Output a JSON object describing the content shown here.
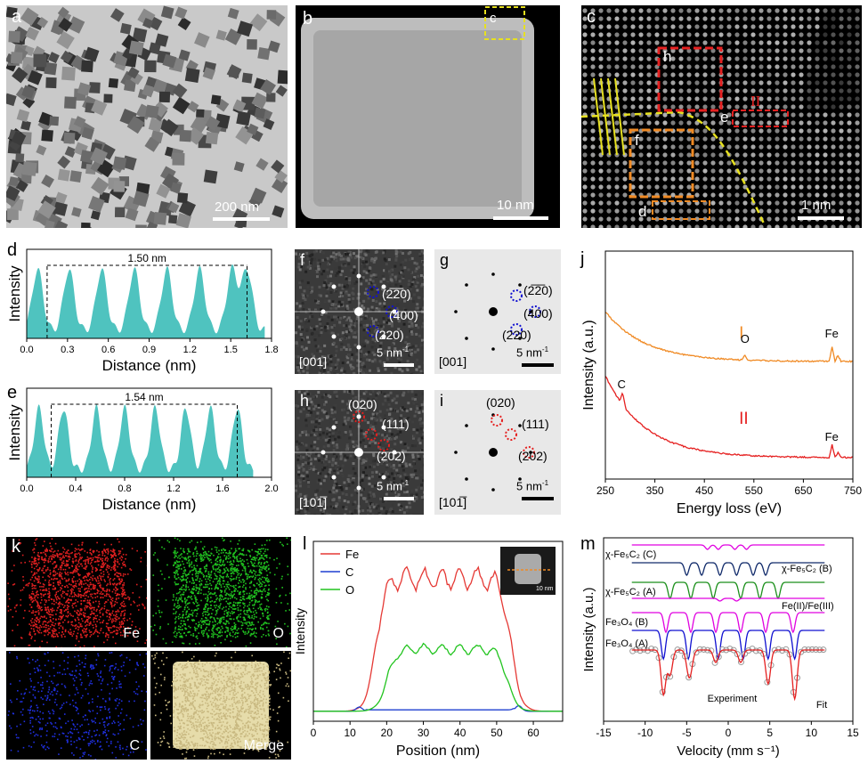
{
  "panels": {
    "a": {
      "label": "a",
      "scale": "200 nm"
    },
    "b": {
      "label": "b",
      "scale": "10 nm",
      "inset": "c"
    },
    "c": {
      "label": "c",
      "scale": "1 nm",
      "box_h": "h",
      "box_e": "e",
      "box_f": "f",
      "box_d": "d",
      "roman": "II"
    },
    "f": {
      "label": "f",
      "zone": "[001]",
      "scale": "5 nm",
      "sup": "-1",
      "spots": [
        "(2̅2̅0)",
        "(400)",
        "(220)"
      ]
    },
    "g": {
      "label": "g",
      "zone": "[001]",
      "scale": "5 nm",
      "sup": "-1",
      "spots": [
        "(2̅2̅0)",
        "(400)",
        "(220)"
      ]
    },
    "h": {
      "label": "h",
      "zone": "[101̅]",
      "scale": "5 nm",
      "sup": "-1",
      "spots": [
        "(020)",
        "(111)",
        "(202)"
      ]
    },
    "i": {
      "label": "i",
      "zone": "[101̅]",
      "scale": "5 nm",
      "sup": "-1",
      "spots": [
        "(020)",
        "(111)",
        "(202)"
      ]
    },
    "k": {
      "label": "k",
      "tiles": [
        "Fe",
        "O",
        "C",
        "Merge"
      ]
    }
  },
  "colors": {
    "teal": "#4fc3bf",
    "fe": "#e53935",
    "c": "#1e3fd0",
    "o": "#22c41f",
    "orange": "#f08a24",
    "ii_red": "#e52020",
    "yellow": "#e6e020",
    "magenta": "#e000e0",
    "blue": "#1010d0",
    "green": "#1a8f1a",
    "navy": "#102a6a"
  },
  "chart_data": [
    {
      "id": "d",
      "type": "area",
      "title": "",
      "xlabel": "Distance (nm)",
      "ylabel": "Intensity",
      "xlim": [
        0,
        1.8
      ],
      "xticks": [
        "0.0",
        "0.3",
        "0.6",
        "0.9",
        "1.2",
        "1.5",
        "1.8"
      ],
      "annotation": "1.50 nm",
      "marker_x": [
        0.15,
        1.62
      ],
      "peaks": [
        0.08,
        0.31,
        0.55,
        0.79,
        1.03,
        1.27,
        1.51,
        1.62
      ]
    },
    {
      "id": "e",
      "type": "area",
      "title": "",
      "xlabel": "Distance (nm)",
      "ylabel": "Intensity",
      "xlim": [
        0,
        2.0
      ],
      "xticks": [
        "0.0",
        "0.4",
        "0.8",
        "1.2",
        "1.6",
        "2.0"
      ],
      "annotation": "1.54 nm",
      "marker_x": [
        0.2,
        1.72
      ],
      "peaks": [
        0.1,
        0.3,
        0.57,
        0.8,
        1.05,
        1.3,
        1.5,
        1.72
      ]
    },
    {
      "id": "j",
      "type": "line",
      "xlabel": "Energy loss (eV)",
      "ylabel": "Intensity (a.u.)",
      "xlim": [
        250,
        750
      ],
      "xticks": [
        "250",
        "350",
        "450",
        "550",
        "650",
        "750"
      ],
      "series": [
        {
          "name": "I",
          "labels": [
            "O",
            "Fe"
          ],
          "edges": [
            532,
            708
          ]
        },
        {
          "name": "II",
          "labels": [
            "C",
            "Fe"
          ],
          "edges": [
            285,
            708
          ]
        }
      ]
    },
    {
      "id": "l",
      "type": "line",
      "xlabel": "Position (nm)",
      "ylabel": "Intensity",
      "xlim": [
        0,
        68
      ],
      "xticks": [
        "0",
        "10",
        "20",
        "30",
        "40",
        "50",
        "60"
      ],
      "inset_scale": "10 nm",
      "series": [
        {
          "name": "Fe",
          "plateau": 1.0,
          "start": 14,
          "end": 54
        },
        {
          "name": "C",
          "plateau": 0.05,
          "start": 12,
          "end": 57
        },
        {
          "name": "O",
          "plateau": 0.47,
          "start": 17,
          "end": 53
        }
      ]
    },
    {
      "id": "m",
      "type": "line",
      "xlabel": "Velocity (mm s⁻¹)",
      "ylabel": "Intensity (a.u.)",
      "xlim": [
        -15,
        15
      ],
      "xticks": [
        "-15",
        "-10",
        "-5",
        "0",
        "5",
        "10",
        "15"
      ],
      "series": [
        {
          "name": "χ-Fe₅C₂ (C)"
        },
        {
          "name": "χ-Fe₅C₂ (B)"
        },
        {
          "name": "χ-Fe₅C₂ (A)"
        },
        {
          "name": "Fe(II)/Fe(III)"
        },
        {
          "name": "Fe₃O₄ (B)"
        },
        {
          "name": "Fe₃O₄ (A)"
        }
      ],
      "labels": {
        "experiment": "Experiment",
        "fit": "Fit"
      }
    }
  ]
}
